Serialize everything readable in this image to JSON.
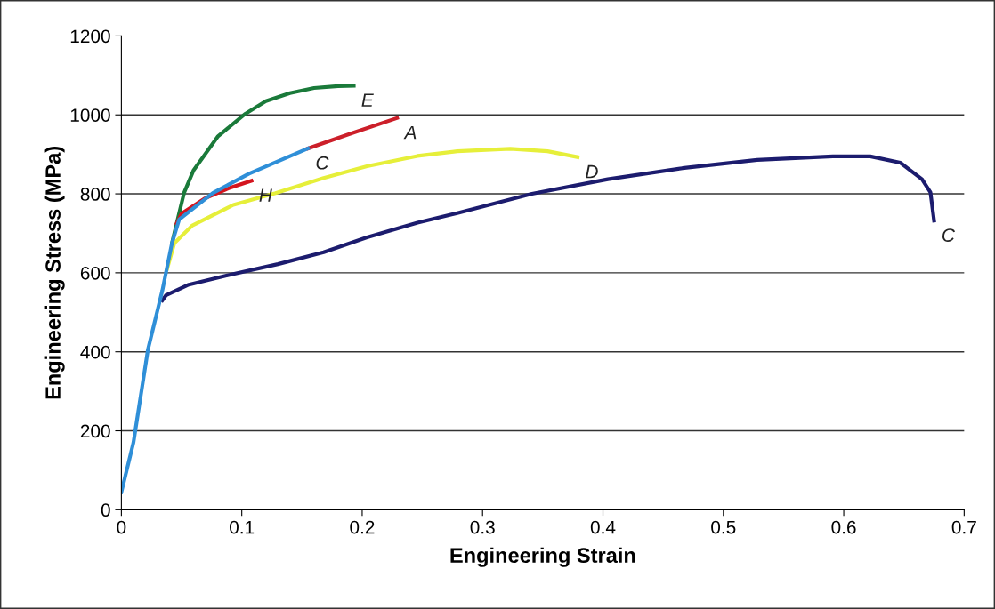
{
  "chart_data": {
    "type": "line",
    "xlabel": "Engineering Strain",
    "ylabel": "Engineering Stress (MPa)",
    "xlim": [
      0,
      0.7
    ],
    "xticks": [
      0,
      0.1,
      0.2,
      0.3,
      0.4,
      0.5,
      0.6,
      0.7
    ],
    "ylim": [
      0,
      1200
    ],
    "yticks": [
      0,
      200,
      400,
      600,
      800,
      1000,
      1200
    ],
    "grid": "y",
    "legend": false,
    "marker": "none",
    "line_style": "solid",
    "series": [
      {
        "name": "C",
        "color": "#1c1c6e",
        "x": [
          0.034,
          0.037,
          0.056,
          0.093,
          0.13,
          0.168,
          0.204,
          0.246,
          0.279,
          0.341,
          0.404,
          0.466,
          0.528,
          0.591,
          0.622,
          0.647,
          0.665,
          0.672,
          0.675
        ],
        "values": [
          530,
          543,
          570,
          597,
          622,
          652,
          690,
          727,
          751,
          800,
          837,
          865,
          886,
          895,
          895,
          879,
          837,
          804,
          732
        ]
      },
      {
        "name": "D",
        "color": "#e6ef3a",
        "x": [
          0.038,
          0.044,
          0.059,
          0.093,
          0.128,
          0.168,
          0.204,
          0.246,
          0.279,
          0.323,
          0.354,
          0.379
        ],
        "values": [
          610,
          675,
          720,
          772,
          802,
          840,
          870,
          896,
          908,
          914,
          908,
          893
        ]
      },
      {
        "name": "E",
        "color": "#1a7a3a",
        "x": [
          0.042,
          0.052,
          0.06,
          0.08,
          0.103,
          0.12,
          0.14,
          0.16,
          0.18,
          0.193
        ],
        "values": [
          675,
          802,
          860,
          945,
          1003,
          1035,
          1055,
          1068,
          1073,
          1074
        ]
      },
      {
        "name": "A",
        "color": "#cc1f2a",
        "x": [
          0.155,
          0.19,
          0.229
        ],
        "values": [
          915,
          952,
          992
        ]
      },
      {
        "name": "H",
        "color": "#d4141e",
        "x": [
          0.046,
          0.05,
          0.069,
          0.089,
          0.108
        ],
        "values": [
          725,
          750,
          788,
          814,
          833
        ]
      },
      {
        "name": "C",
        "color": "#2f8fd8",
        "x": [
          0,
          0.01,
          0.022,
          0.034,
          0.042,
          0.048,
          0.076,
          0.106,
          0.155
        ],
        "values": [
          45,
          170,
          405,
          555,
          675,
          735,
          802,
          851,
          915
        ]
      }
    ]
  }
}
